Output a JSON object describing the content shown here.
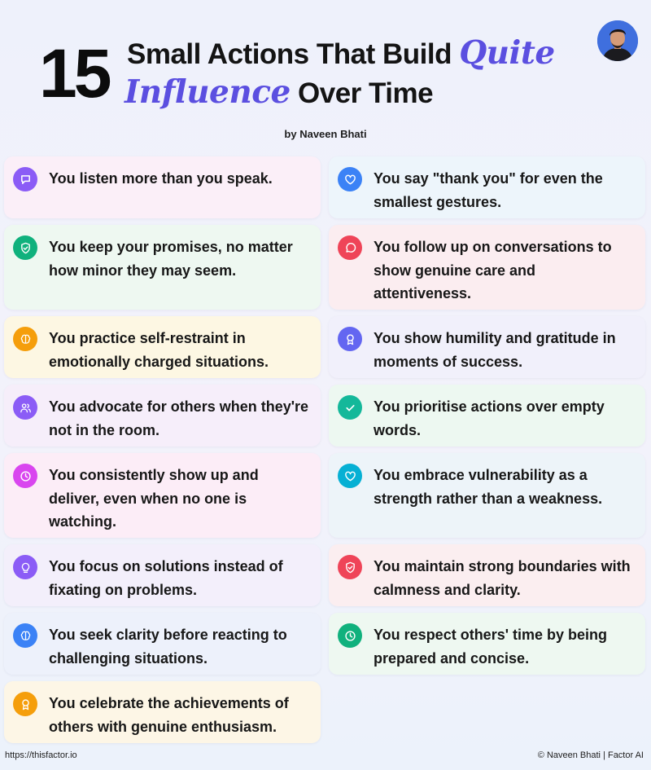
{
  "header": {
    "number": "15",
    "line1_text": "Small Actions That Build",
    "line1_accent": "Quite",
    "line2_accent": "Influence",
    "line2_text": "Over Time",
    "byline": "by Naveen Bhati"
  },
  "colors": {
    "accent": "#5b4fe0"
  },
  "left_column": [
    {
      "text": "You listen more than you speak.",
      "icon": "message-square-icon",
      "icon_color": "#8b5cf6",
      "bg": "#fbeff8"
    },
    {
      "text": "You keep your promises, no matter how minor they may seem.",
      "icon": "shield-check-icon",
      "icon_color": "#10b17d",
      "bg": "#eef8f1"
    },
    {
      "text": "You practice self-restraint in emotionally charged situations.",
      "icon": "brain-icon",
      "icon_color": "#f59e0b",
      "bg": "#fdf7e3"
    },
    {
      "text": "You advocate for others when they're not in the room.",
      "icon": "users-icon",
      "icon_color": "#8b5cf6",
      "bg": "#f6eefa"
    },
    {
      "text": "You consistently show up and deliver, even when no one is watching.",
      "icon": "clock-icon",
      "icon_color": "#d946ef",
      "bg": "#fcedf7"
    },
    {
      "text": "You focus on solutions instead of fixating on problems.",
      "icon": "lightbulb-icon",
      "icon_color": "#8b5cf6",
      "bg": "#f3effb"
    },
    {
      "text": "You seek clarity before reacting to challenging situations.",
      "icon": "brain-icon",
      "icon_color": "#3b82f6",
      "bg": "#edf1fb"
    },
    {
      "text": "You celebrate the achievements of others with genuine enthusiasm.",
      "icon": "award-icon",
      "icon_color": "#f59e0b",
      "bg": "#fdf6e6"
    }
  ],
  "right_column": [
    {
      "text": "You say \"thank you\" for even the smallest gestures.",
      "icon": "heart-icon",
      "icon_color": "#3b82f6",
      "bg": "#edf5fb"
    },
    {
      "text": "You follow up on conversations to show genuine care and attentiveness.",
      "icon": "message-circle-icon",
      "icon_color": "#ef4458",
      "bg": "#fbedf0"
    },
    {
      "text": "You show humility and gratitude in moments of success.",
      "icon": "award-icon",
      "icon_color": "#6366f1",
      "bg": "#f1f0fb"
    },
    {
      "text": "You prioritise actions over empty words.",
      "icon": "check-icon",
      "icon_color": "#14b89a",
      "bg": "#edf8f1"
    },
    {
      "text": "You embrace vulnerability as a strength rather than a weakness.",
      "icon": "heart-icon",
      "icon_color": "#06b0d4",
      "bg": "#edf4f9"
    },
    {
      "text": "You maintain strong boundaries with calmness and clarity.",
      "icon": "shield-check-icon",
      "icon_color": "#ef4458",
      "bg": "#fbeef0"
    },
    {
      "text": "You respect others' time by being prepared and concise.",
      "icon": "clock-icon",
      "icon_color": "#10b17d",
      "bg": "#eef8f1"
    }
  ],
  "footer": {
    "url": "https://thisfactor.io",
    "credit": "© Naveen Bhati | Factor AI"
  }
}
